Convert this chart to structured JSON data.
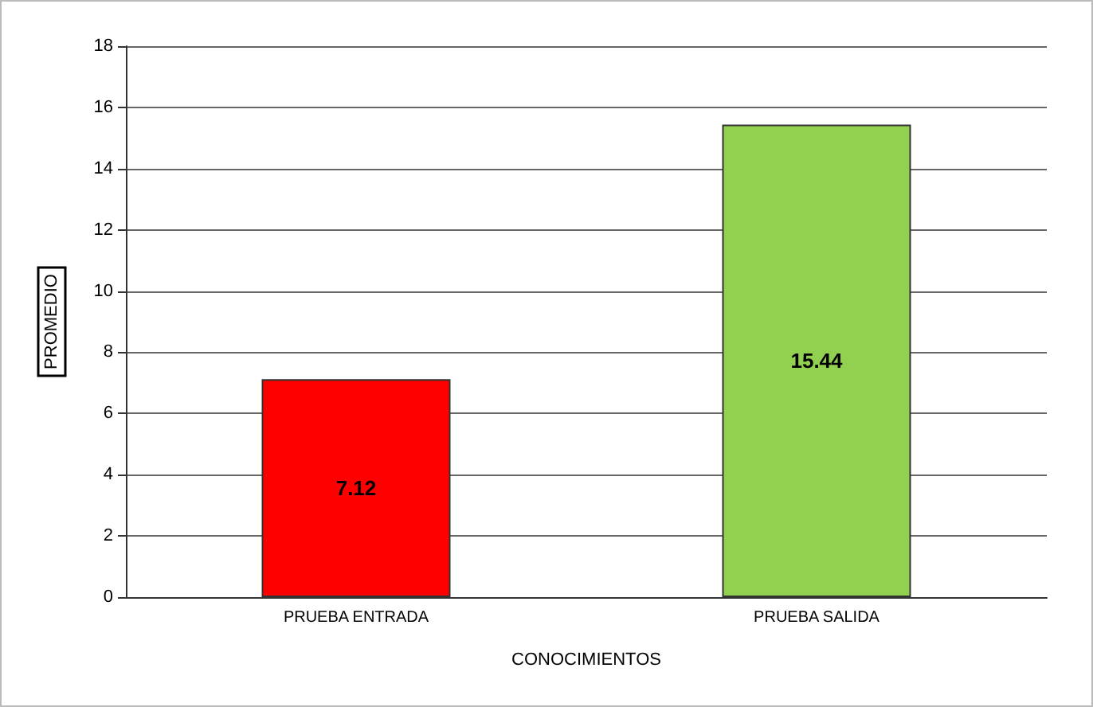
{
  "chart_data": {
    "type": "bar",
    "xlabel": "CONOCIMIENTOS",
    "ylabel": "PROMEDIO",
    "categories": [
      "PRUEBA ENTRADA",
      "PRUEBA SALIDA"
    ],
    "values": [
      7.12,
      15.44
    ],
    "colors": [
      "#ff0000",
      "#92d050"
    ],
    "ylim": [
      0,
      18
    ],
    "yticks": [
      0,
      2,
      4,
      6,
      8,
      10,
      12,
      14,
      16,
      18
    ],
    "grid": "y",
    "data_labels": true
  }
}
